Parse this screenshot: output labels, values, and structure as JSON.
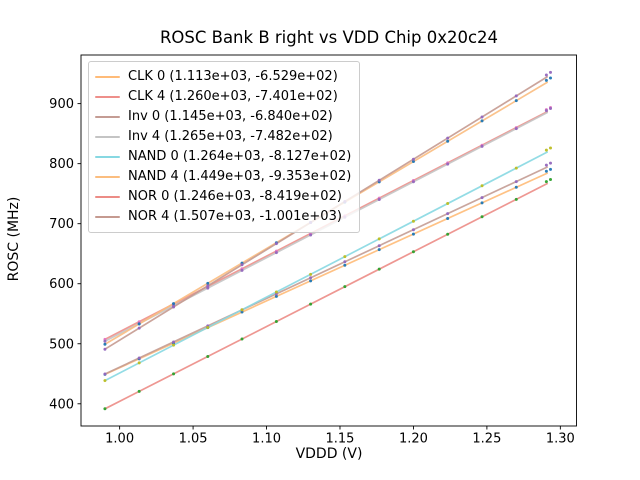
{
  "chart_data": {
    "type": "scatter",
    "has_fit_lines": true,
    "title": "ROSC Bank B right vs VDD Chip 0x20c24",
    "xlabel": "VDDD (V)",
    "ylabel": "ROSC (MHz)",
    "xlim": [
      0.9737,
      1.311
    ],
    "ylim": [
      363,
      981
    ],
    "grid": false,
    "x_ticks": [
      1.0,
      1.05,
      1.1,
      1.15,
      1.2,
      1.25,
      1.3
    ],
    "x_tick_labels": [
      "1.00",
      "1.05",
      "1.10",
      "1.15",
      "1.20",
      "1.25",
      "1.30"
    ],
    "y_ticks": [
      400,
      500,
      600,
      700,
      800,
      900
    ],
    "y_tick_labels": [
      "400",
      "500",
      "600",
      "700",
      "800",
      "900"
    ],
    "x_values": [
      0.99,
      1.0133,
      1.0367,
      1.06,
      1.0833,
      1.1067,
      1.13,
      1.1533,
      1.1767,
      1.2,
      1.2233,
      1.2467,
      1.27,
      1.2905,
      1.2933
    ],
    "fit_x_range": [
      0.99,
      1.291
    ],
    "tail_points": 2,
    "tail_offset_mhz": 4,
    "legend_position": "upper left",
    "series": [
      {
        "name": "CLK 0",
        "legend_label": "CLK 0 (1.113e+03, -6.529e+02)",
        "slope": 1113,
        "intercept": -652.9,
        "line_color": "#ffbb78",
        "dot_color": "#1f77b4"
      },
      {
        "name": "CLK 4",
        "legend_label": "CLK 4 (1.260e+03, -7.401e+02)",
        "slope": 1260,
        "intercept": -740.1,
        "line_color": "#ee8f8a",
        "dot_color": "#e377c2"
      },
      {
        "name": "Inv 0",
        "legend_label": "Inv 0 (1.145e+03, -6.840e+02)",
        "slope": 1145,
        "intercept": -684.0,
        "line_color": "#c49c94",
        "dot_color": "#9467bd"
      },
      {
        "name": "Inv 4",
        "legend_label": "Inv 4 (1.265e+03, -7.482e+02)",
        "slope": 1265,
        "intercept": -748.2,
        "line_color": "#c4c4c4",
        "dot_color": "#9467bd"
      },
      {
        "name": "NAND 0",
        "legend_label": "NAND 0 (1.264e+03, -8.127e+02)",
        "slope": 1264,
        "intercept": -812.7,
        "line_color": "#87d8e2",
        "dot_color": "#bcbd22"
      },
      {
        "name": "NAND 4",
        "legend_label": "NAND 4 (1.449e+03, -9.353e+02)",
        "slope": 1449,
        "intercept": -935.3,
        "line_color": "#fbbd7f",
        "dot_color": "#1f77b4"
      },
      {
        "name": "NOR 0",
        "legend_label": "NOR 0 (1.246e+03, -8.419e+02)",
        "slope": 1246,
        "intercept": -841.9,
        "line_color": "#ec8c86",
        "dot_color": "#2ca02c"
      },
      {
        "name": "NOR 4",
        "legend_label": "NOR 4 (1.507e+03, -1.001e+03)",
        "slope": 1507,
        "intercept": -1001.0,
        "line_color": "#c59a90",
        "dot_color": "#9467bd"
      }
    ]
  }
}
